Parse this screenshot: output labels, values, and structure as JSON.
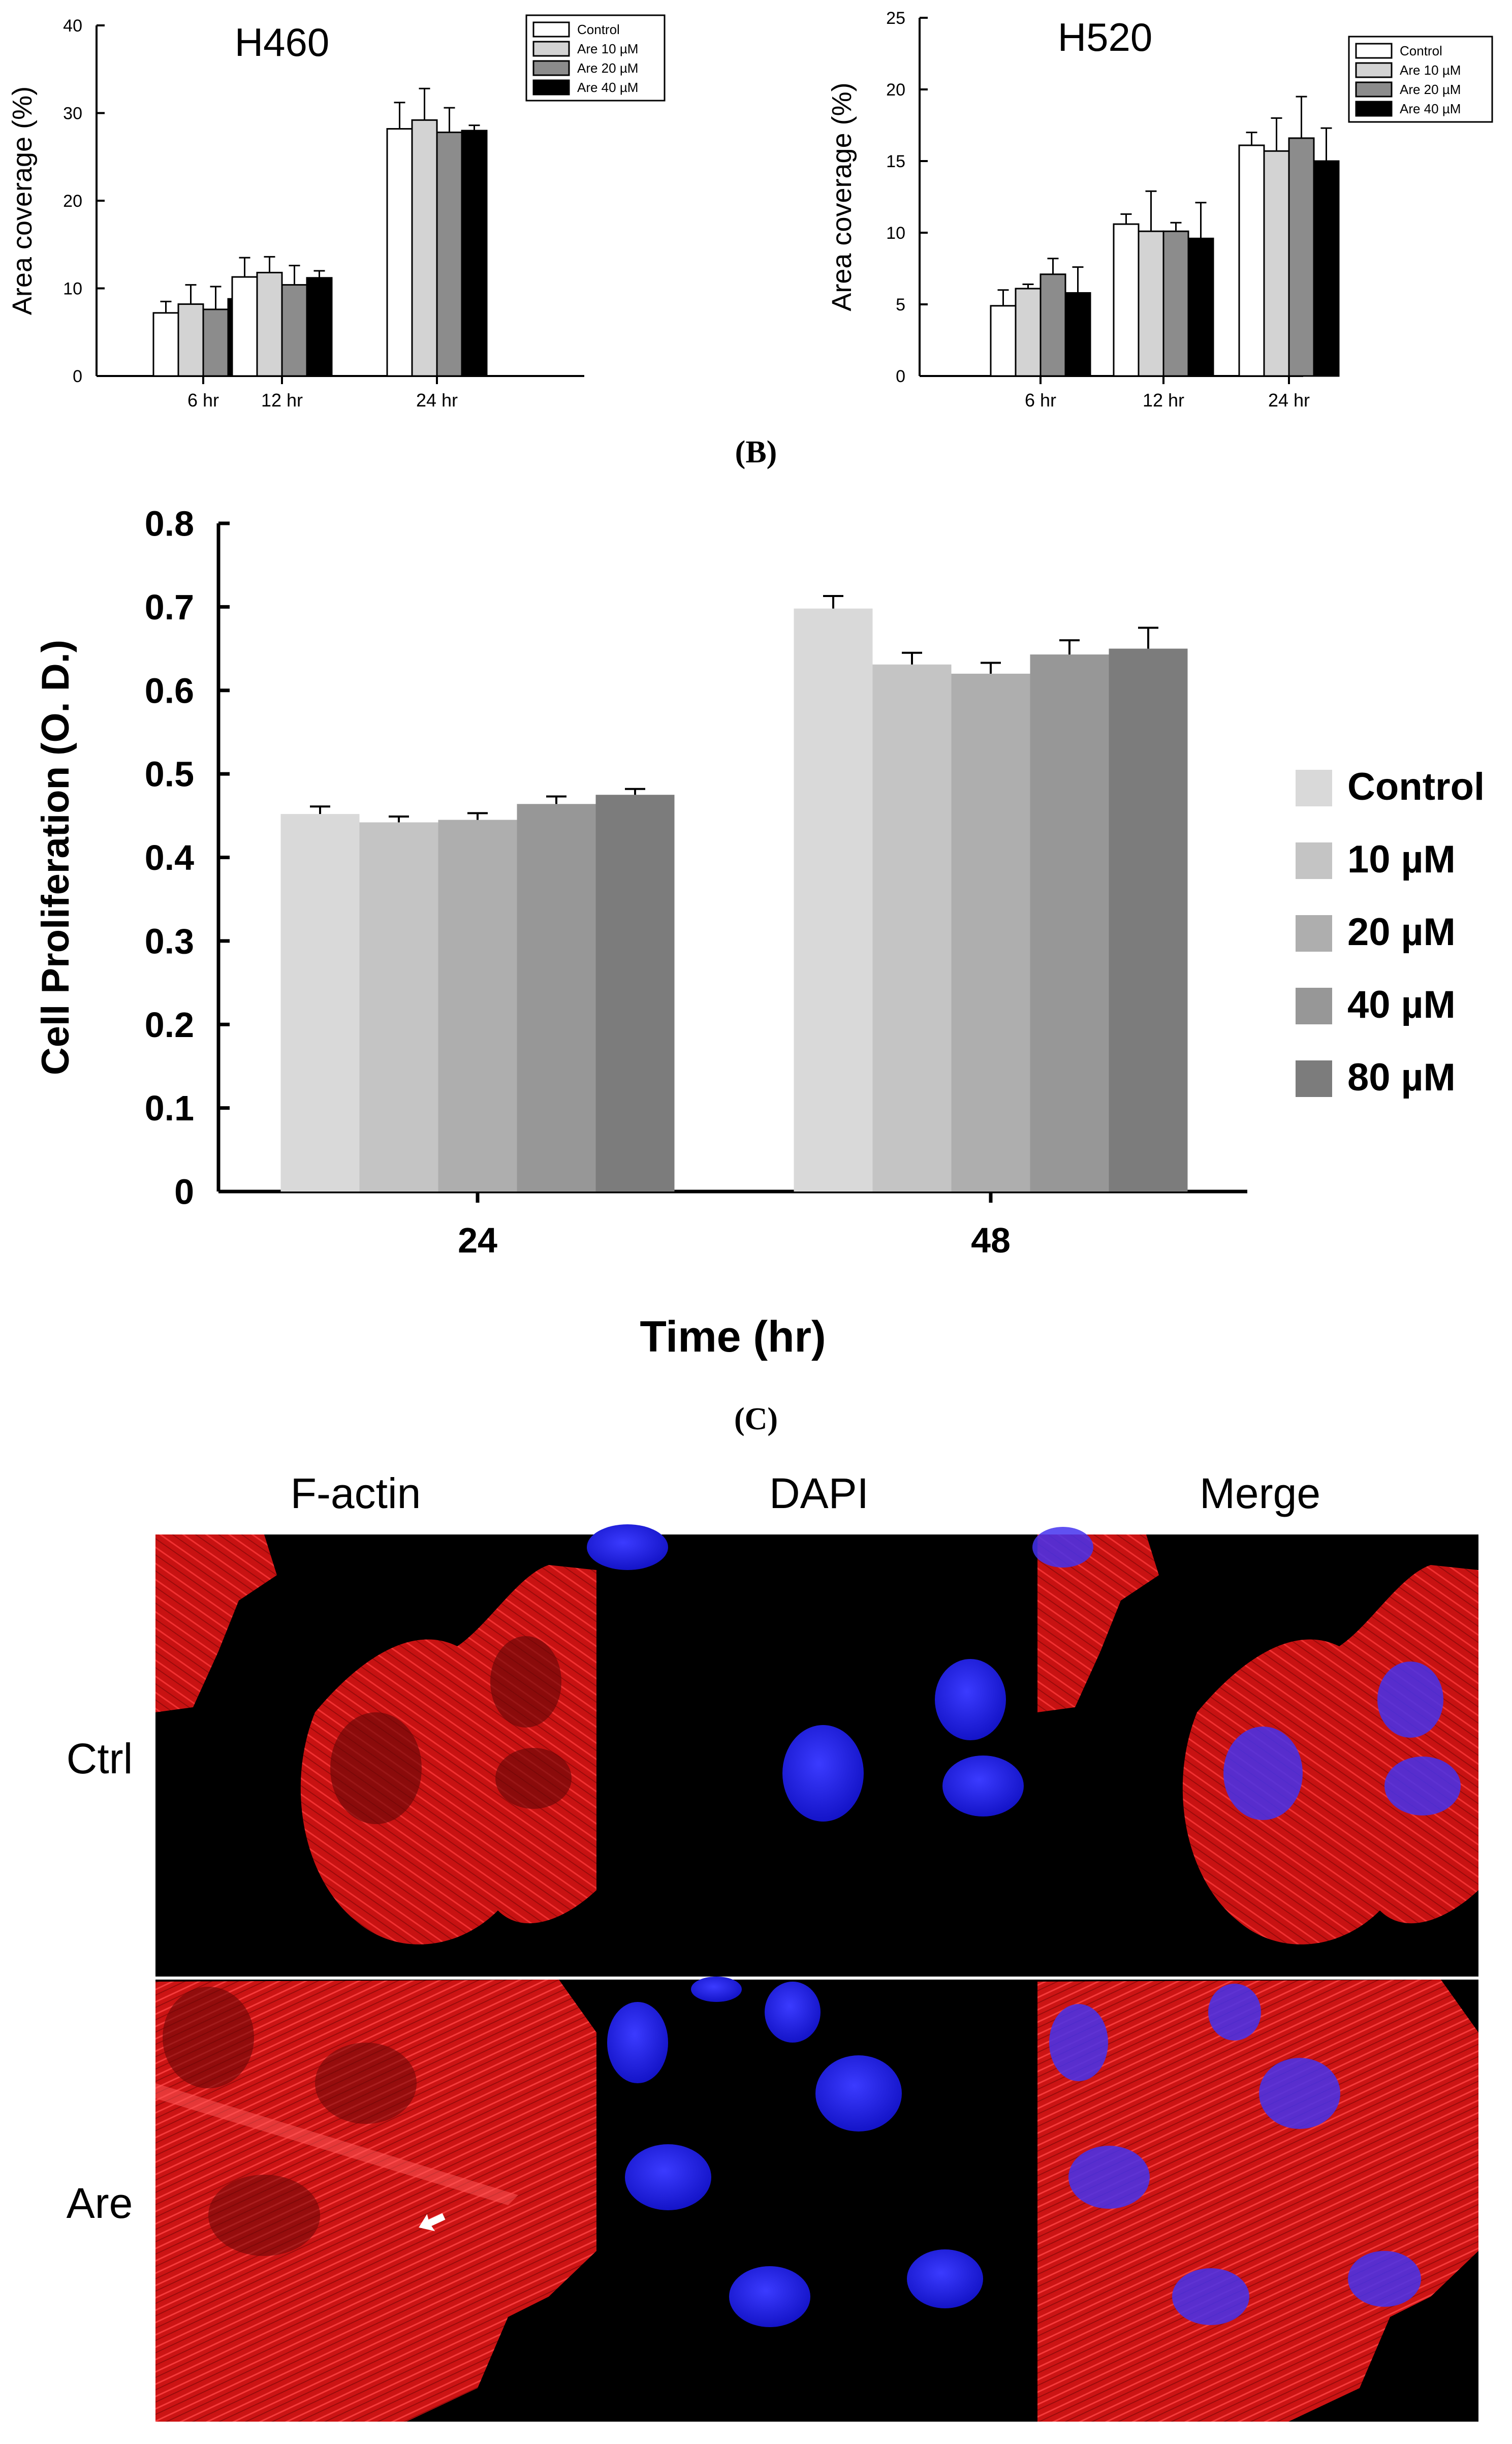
{
  "chart_data": [
    {
      "type": "bar",
      "title": "H460",
      "ylabel": "Area coverage (%)",
      "xlabel": "",
      "ylim": [
        0,
        40
      ],
      "yticks": [
        "0",
        "10",
        "20",
        "30",
        "40"
      ],
      "categories": [
        "6 hr",
        "12 hr",
        "24 hr"
      ],
      "legend_position": "top-right",
      "series": [
        {
          "name": "Control",
          "color": "#ffffff",
          "values": [
            7.2,
            11.3,
            28.2
          ],
          "errors": [
            1.3,
            2.2,
            3.0
          ]
        },
        {
          "name": "Are 10 µM",
          "color": "#d3d3d3",
          "values": [
            8.2,
            11.8,
            29.2
          ],
          "errors": [
            2.2,
            1.8,
            3.6
          ]
        },
        {
          "name": "Are 20 µM",
          "color": "#8c8c8c",
          "values": [
            7.6,
            10.4,
            27.8
          ],
          "errors": [
            2.6,
            2.2,
            2.8
          ]
        },
        {
          "name": "Are 40 µM",
          "color": "#000000",
          "values": [
            8.8,
            11.2,
            28.0
          ],
          "errors": [
            0.4,
            0.8,
            0.6
          ]
        }
      ]
    },
    {
      "type": "bar",
      "title": "H520",
      "ylabel": "Area coverage (%)",
      "xlabel": "",
      "ylim": [
        0,
        25
      ],
      "yticks": [
        "0",
        "5",
        "10",
        "15",
        "20",
        "25"
      ],
      "categories": [
        "6 hr",
        "12 hr",
        "24 hr"
      ],
      "legend_position": "top-right",
      "series": [
        {
          "name": "Control",
          "color": "#ffffff",
          "values": [
            4.9,
            10.6,
            16.1
          ],
          "errors": [
            1.1,
            0.7,
            0.9
          ]
        },
        {
          "name": "Are 10 µM",
          "color": "#d3d3d3",
          "values": [
            6.1,
            10.1,
            15.7
          ],
          "errors": [
            0.3,
            2.8,
            2.3
          ]
        },
        {
          "name": "Are 20 µM",
          "color": "#8c8c8c",
          "values": [
            7.1,
            10.1,
            16.6
          ],
          "errors": [
            1.1,
            0.6,
            2.9
          ]
        },
        {
          "name": "Are 40 µM",
          "color": "#000000",
          "values": [
            5.8,
            9.6,
            15.0
          ],
          "errors": [
            1.8,
            2.5,
            2.3
          ]
        }
      ]
    },
    {
      "type": "bar",
      "title": "",
      "ylabel": "Cell Proliferation (O. D.)",
      "xlabel": "Time (hr)",
      "ylim": [
        0,
        0.8
      ],
      "yticks": [
        "0",
        "0.1",
        "0.2",
        "0.3",
        "0.4",
        "0.5",
        "0.6",
        "0.7",
        "0.8"
      ],
      "categories": [
        "24",
        "48"
      ],
      "legend_position": "right",
      "series": [
        {
          "name": "Control",
          "color": "#d9d9d9",
          "values": [
            0.452,
            0.698
          ],
          "errors": [
            0.009,
            0.015
          ]
        },
        {
          "name": "10 µM",
          "color": "#c4c4c4",
          "values": [
            0.442,
            0.631
          ],
          "errors": [
            0.007,
            0.014
          ]
        },
        {
          "name": "20 µM",
          "color": "#aeaeae",
          "values": [
            0.445,
            0.62
          ],
          "errors": [
            0.008,
            0.013
          ]
        },
        {
          "name": "40 µM",
          "color": "#979797",
          "values": [
            0.464,
            0.643
          ],
          "errors": [
            0.009,
            0.017
          ]
        },
        {
          "name": "80 µM",
          "color": "#7c7c7c",
          "values": [
            0.475,
            0.65
          ],
          "errors": [
            0.007,
            0.025
          ]
        }
      ]
    }
  ],
  "panel_labels": {
    "b": "(B)",
    "c": "(C)"
  },
  "microscopy": {
    "columns": [
      "F-actin",
      "DAPI",
      "Merge"
    ],
    "rows": [
      "Ctrl",
      "Are"
    ]
  }
}
